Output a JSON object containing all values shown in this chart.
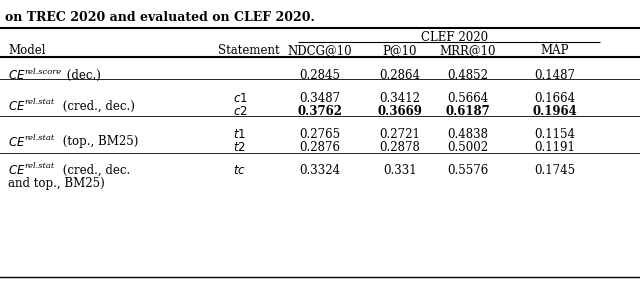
{
  "title_line": "on TREC 2020 and evaluated on CLEF 2020.",
  "clef_header": "CLEF 2020",
  "col_headers": [
    "Model",
    "Statement",
    "NDCG@10",
    "P@10",
    "MRR@10",
    "MAP"
  ],
  "rows": [
    {
      "model_main": "CE",
      "model_sub": "rel.score",
      "model_suffix": " (dec.)",
      "model_suffix2": "",
      "statement": "",
      "statement_italic": false,
      "ndcg": "0.2845",
      "p10": "0.2864",
      "mrr": "0.4852",
      "map": "0.1487",
      "bold": [
        false,
        false,
        false,
        false
      ],
      "group_start": true,
      "group_end": true,
      "sub": "score"
    },
    {
      "model_main": "CE",
      "model_sub": "rel.stat",
      "model_suffix": " (cred., dec.)",
      "model_suffix2": "",
      "statement": "c1",
      "statement_italic": true,
      "ndcg": "0.3487",
      "p10": "0.3412",
      "mrr": "0.5664",
      "map": "0.1664",
      "bold": [
        false,
        false,
        false,
        false
      ],
      "group_start": true,
      "group_end": false,
      "sub": "stat"
    },
    {
      "model_main": "CE",
      "model_sub": "rel.stat",
      "model_suffix": " (cred., dec.)",
      "model_suffix2": "",
      "statement": "c2",
      "statement_italic": true,
      "ndcg": "0.3762",
      "p10": "0.3669",
      "mrr": "0.6187",
      "map": "0.1964",
      "bold": [
        true,
        true,
        true,
        true
      ],
      "group_start": false,
      "group_end": true,
      "sub": "stat"
    },
    {
      "model_main": "CE",
      "model_sub": "rel.stat",
      "model_suffix": " (top., BM25)",
      "model_suffix2": "",
      "statement": "t1",
      "statement_italic": true,
      "ndcg": "0.2765",
      "p10": "0.2721",
      "mrr": "0.4838",
      "map": "0.1154",
      "bold": [
        false,
        false,
        false,
        false
      ],
      "group_start": true,
      "group_end": false,
      "sub": "stat"
    },
    {
      "model_main": "CE",
      "model_sub": "rel.stat",
      "model_suffix": " (top., BM25)",
      "model_suffix2": "",
      "statement": "t2",
      "statement_italic": true,
      "ndcg": "0.2876",
      "p10": "0.2878",
      "mrr": "0.5002",
      "map": "0.1191",
      "bold": [
        false,
        false,
        false,
        false
      ],
      "group_start": false,
      "group_end": true,
      "sub": "stat"
    },
    {
      "model_main": "CE",
      "model_sub": "rel.stat",
      "model_suffix": " (cred., dec.",
      "model_suffix2": "and top., BM25)",
      "statement": "tc",
      "statement_italic": true,
      "ndcg": "0.3324",
      "p10": "0.331",
      "mrr": "0.5576",
      "map": "0.1745",
      "bold": [
        false,
        false,
        false,
        false
      ],
      "group_start": true,
      "group_end": true,
      "sub": "stat"
    }
  ],
  "bg_color": "#ffffff",
  "text_color": "#000000",
  "font_size": 8.5
}
